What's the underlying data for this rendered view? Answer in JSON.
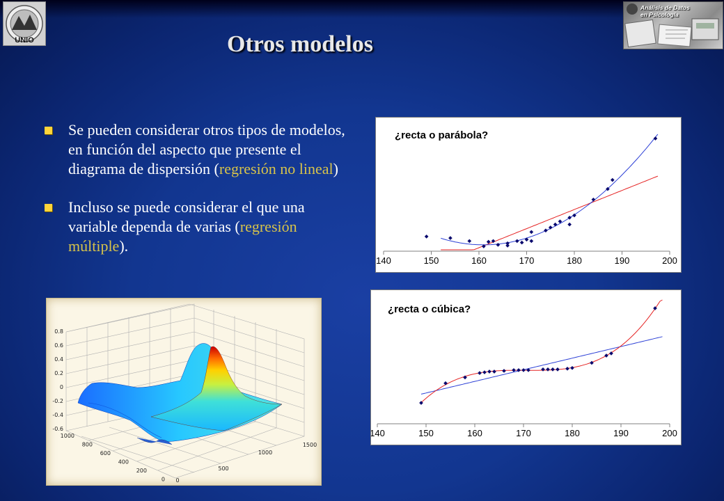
{
  "header": {
    "title": "Otros modelos",
    "logo_right_line1": "Análisis de Datos",
    "logo_right_line2": "en Psicología",
    "logo_left_letters": "UNIO"
  },
  "bullets": [
    {
      "before": "Se pueden considerar otros tipos de modelos, en función del aspecto que presente el diagrama de dispersión (",
      "highlight": "regresión no lineal",
      "after": ")"
    },
    {
      "before": "Incluso se puede considerar el que una variable dependa de varias (",
      "highlight": "regresión múltiple",
      "after": ")."
    }
  ],
  "colors": {
    "background": "#123690",
    "bullet": "#ffd43a",
    "highlight_text": "#d7c34a",
    "fit_red": "#e52222",
    "fit_blue": "#2b3fd6",
    "points": "#0a0a6e"
  },
  "chart_data": [
    {
      "type": "scatter",
      "title": "¿recta o parábola?",
      "xlim": [
        140,
        200
      ],
      "xticks": [
        "140",
        "150",
        "160",
        "170",
        "180",
        "190",
        "200"
      ],
      "points": [
        [
          149,
          35
        ],
        [
          154,
          33
        ],
        [
          158,
          29
        ],
        [
          161,
          22
        ],
        [
          162,
          28
        ],
        [
          163,
          29
        ],
        [
          164,
          24
        ],
        [
          166,
          23
        ],
        [
          166,
          26
        ],
        [
          168,
          29
        ],
        [
          169,
          27
        ],
        [
          170,
          31
        ],
        [
          171,
          29
        ],
        [
          171,
          41
        ],
        [
          174,
          43
        ],
        [
          175,
          47
        ],
        [
          176,
          51
        ],
        [
          177,
          55
        ],
        [
          179,
          51
        ],
        [
          179,
          60
        ],
        [
          180,
          63
        ],
        [
          184,
          84
        ],
        [
          187,
          98
        ],
        [
          188,
          110
        ],
        [
          197,
          165
        ]
      ],
      "fits": [
        {
          "kind": "linear",
          "color": "red"
        },
        {
          "kind": "quadratic",
          "color": "blue"
        }
      ]
    },
    {
      "type": "scatter",
      "title": "¿recta o cúbica?",
      "xlim": [
        140,
        200
      ],
      "xticks": [
        "140",
        "150",
        "160",
        "170",
        "180",
        "190",
        "200"
      ],
      "points": [
        [
          149,
          10
        ],
        [
          154,
          37
        ],
        [
          158,
          45
        ],
        [
          161,
          51
        ],
        [
          162,
          52
        ],
        [
          163,
          53
        ],
        [
          164,
          53
        ],
        [
          166,
          54
        ],
        [
          168,
          55
        ],
        [
          169,
          55
        ],
        [
          170,
          55
        ],
        [
          171,
          55
        ],
        [
          174,
          56
        ],
        [
          175,
          56
        ],
        [
          176,
          56
        ],
        [
          177,
          56
        ],
        [
          179,
          57
        ],
        [
          180,
          58
        ],
        [
          184,
          65
        ],
        [
          187,
          75
        ],
        [
          188,
          78
        ],
        [
          197,
          140
        ]
      ],
      "fits": [
        {
          "kind": "linear",
          "color": "blue"
        },
        {
          "kind": "cubic",
          "color": "red"
        }
      ]
    },
    {
      "type": "surface",
      "zticks": [
        "0.8",
        "0.6",
        "0.4",
        "0.2",
        "0",
        "-0.2",
        "-0.4",
        "-0.6"
      ],
      "yticks": [
        "1000",
        "800",
        "600",
        "400",
        "200",
        "0"
      ],
      "xticks": [
        "0",
        "500",
        "1000",
        "1500"
      ]
    }
  ]
}
